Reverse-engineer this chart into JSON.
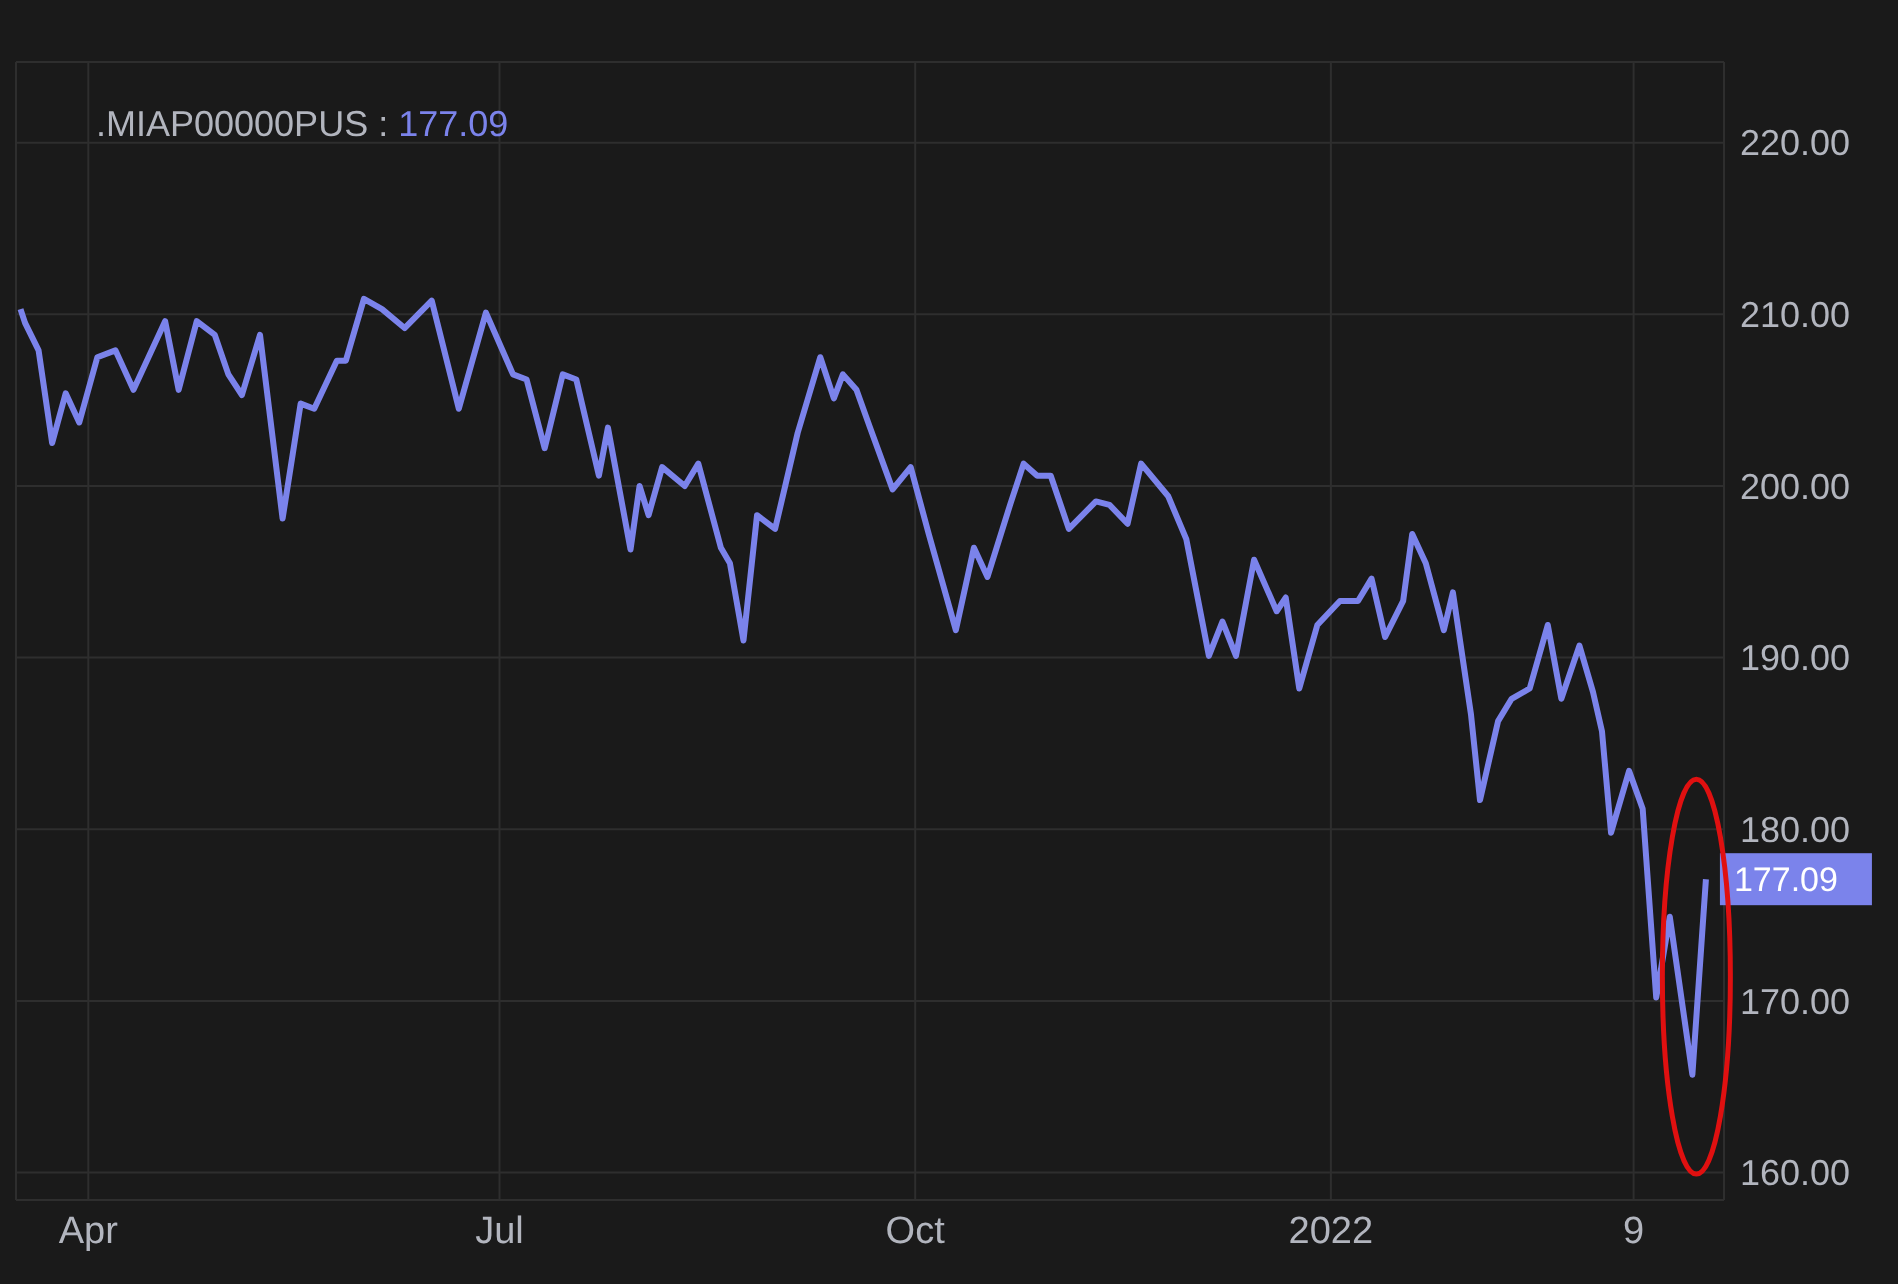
{
  "chart_data": {
    "type": "line",
    "x": [
      "2021-03-17",
      "2021-03-18",
      "2021-03-21",
      "2021-03-24",
      "2021-03-27",
      "2021-03-30",
      "2021-04-03",
      "2021-04-07",
      "2021-04-11",
      "2021-04-18",
      "2021-04-21",
      "2021-04-25",
      "2021-04-29",
      "2021-05-02",
      "2021-05-05",
      "2021-05-09",
      "2021-05-14",
      "2021-05-18",
      "2021-05-21",
      "2021-05-26",
      "2021-05-28",
      "2021-06-01",
      "2021-06-05",
      "2021-06-10",
      "2021-06-16",
      "2021-06-22",
      "2021-06-28",
      "2021-07-04",
      "2021-07-07",
      "2021-07-11",
      "2021-07-15",
      "2021-07-18",
      "2021-07-23",
      "2021-07-25",
      "2021-07-30",
      "2021-08-01",
      "2021-08-03",
      "2021-08-06",
      "2021-08-11",
      "2021-08-14",
      "2021-08-19",
      "2021-08-21",
      "2021-08-24",
      "2021-08-27",
      "2021-08-31",
      "2021-09-05",
      "2021-09-10",
      "2021-09-13",
      "2021-09-15",
      "2021-09-18",
      "2021-09-21",
      "2021-09-26",
      "2021-09-30",
      "2021-10-04",
      "2021-10-10",
      "2021-10-14",
      "2021-10-17",
      "2021-10-22",
      "2021-10-25",
      "2021-10-28",
      "2021-10-31",
      "2021-11-04",
      "2021-11-10",
      "2021-11-13",
      "2021-11-17",
      "2021-11-20",
      "2021-11-26",
      "2021-11-30",
      "2021-12-05",
      "2021-12-08",
      "2021-12-11",
      "2021-12-15",
      "2021-12-20",
      "2021-12-22",
      "2021-12-25",
      "2021-12-29",
      "2022-01-03",
      "2022-01-07",
      "2022-01-10",
      "2022-01-13",
      "2022-01-17",
      "2022-01-19",
      "2022-01-22",
      "2022-01-26",
      "2022-01-28",
      "2022-02-01",
      "2022-02-03",
      "2022-02-07",
      "2022-02-10",
      "2022-02-14",
      "2022-02-18",
      "2022-02-21",
      "2022-02-25",
      "2022-02-28",
      "2022-03-02",
      "2022-03-04",
      "2022-03-08",
      "2022-03-11",
      "2022-03-14",
      "2022-03-17",
      "2022-03-22",
      "2022-03-25"
    ],
    "series": [
      {
        "name": ".MIAP00000PUS :",
        "color": "#7b83eb",
        "values": [
          210.3,
          209.5,
          207.9,
          202.5,
          205.4,
          203.7,
          207.5,
          207.9,
          205.6,
          209.6,
          205.6,
          209.6,
          208.8,
          206.5,
          205.3,
          208.8,
          198.1,
          204.8,
          204.5,
          207.3,
          207.3,
          210.9,
          210.3,
          209.2,
          210.8,
          204.5,
          210.1,
          206.5,
          206.2,
          202.2,
          206.5,
          206.2,
          200.6,
          203.4,
          196.3,
          200.0,
          198.3,
          201.1,
          200.0,
          201.3,
          196.4,
          195.5,
          191.0,
          198.3,
          197.5,
          203.1,
          207.5,
          205.1,
          206.5,
          205.6,
          203.4,
          199.8,
          201.1,
          197.2,
          191.6,
          196.4,
          194.7,
          198.9,
          201.3,
          200.6,
          200.6,
          197.5,
          199.1,
          198.9,
          197.8,
          201.3,
          199.4,
          196.9,
          190.1,
          192.1,
          190.1,
          195.7,
          192.7,
          193.5,
          188.2,
          191.9,
          193.3,
          193.3,
          194.6,
          191.2,
          193.3,
          197.2,
          195.5,
          191.6,
          193.8,
          186.7,
          181.7,
          186.3,
          187.6,
          188.2,
          191.9,
          187.6,
          190.7,
          188.0,
          185.7,
          179.8,
          183.4,
          181.2,
          170.2,
          174.9,
          165.7,
          177.09
        ],
        "value_labels": [
          null,
          null,
          null,
          null,
          null,
          null,
          null,
          null,
          null,
          null,
          null,
          null,
          null,
          null,
          null,
          null,
          null,
          null,
          null,
          null,
          null,
          null,
          null,
          null,
          null,
          null,
          null,
          null,
          null,
          null,
          null,
          null,
          null,
          null,
          null,
          null,
          null,
          null,
          null,
          null,
          null,
          null,
          null,
          null,
          null,
          null,
          null,
          null,
          null,
          null,
          null,
          null,
          null,
          null,
          null,
          null,
          null,
          null,
          null,
          null,
          null,
          null,
          null,
          null,
          null,
          null,
          null,
          null,
          null,
          null,
          null,
          null,
          null,
          null,
          null,
          null,
          null,
          null,
          null,
          null,
          null,
          null,
          null,
          null,
          null,
          null,
          null,
          null,
          null,
          null,
          null,
          null,
          null,
          null,
          null,
          null,
          null,
          null,
          null,
          null,
          null,
          "177.09"
        ]
      }
    ],
    "xlim": [
      "2021-03-16",
      "2022-03-29"
    ],
    "xticks": [
      {
        "value": "2021-04-01",
        "label": "Apr"
      },
      {
        "value": "2021-07-01",
        "label": "Jul"
      },
      {
        "value": "2021-10-01",
        "label": "Oct"
      },
      {
        "value": "2022-01-01",
        "label": "2022"
      },
      {
        "value": "2022-03-09",
        "label": "9"
      }
    ],
    "ylim": [
      158.4,
      224.7
    ],
    "yticks": [
      {
        "value": 160,
        "label": "160.00"
      },
      {
        "value": 170,
        "label": "170.00"
      },
      {
        "value": 180,
        "label": "180.00"
      },
      {
        "value": 190,
        "label": "190.00"
      },
      {
        "value": 200,
        "label": "200.00"
      },
      {
        "value": 210,
        "label": "210.00"
      },
      {
        "value": 220,
        "label": "220.00"
      }
    ],
    "grid": true,
    "legend": "top left",
    "marker": "none",
    "line_style": "solid"
  }
}
